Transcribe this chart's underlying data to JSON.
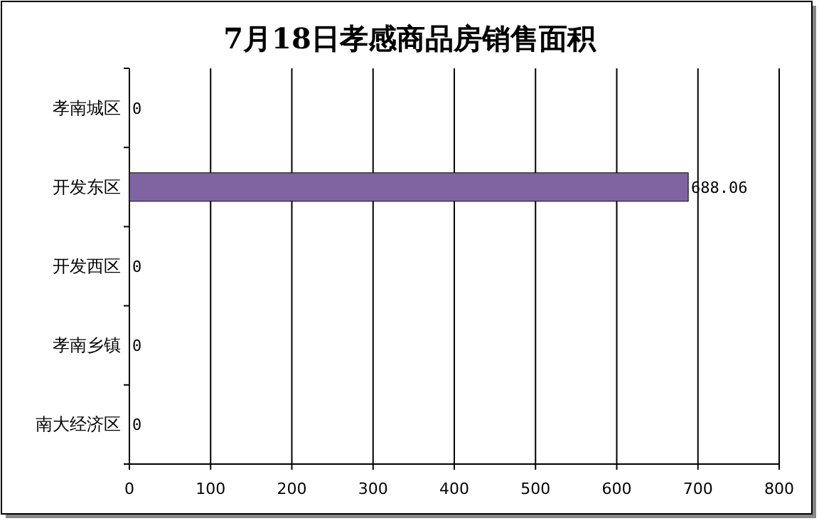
{
  "chart_data": {
    "type": "bar",
    "orientation": "horizontal",
    "title": "7月18日孝感商品房销售面积",
    "categories": [
      "孝南城区",
      "开发东区",
      "开发西区",
      "孝南乡镇",
      "南大经济区"
    ],
    "values": [
      0,
      688.06,
      0,
      0,
      0
    ],
    "color": "#8064a2",
    "xlim": [
      0,
      800
    ],
    "xticks": [
      0,
      100,
      200,
      300,
      400,
      500,
      600,
      700,
      800
    ],
    "grid": "x",
    "data_labels": true
  }
}
